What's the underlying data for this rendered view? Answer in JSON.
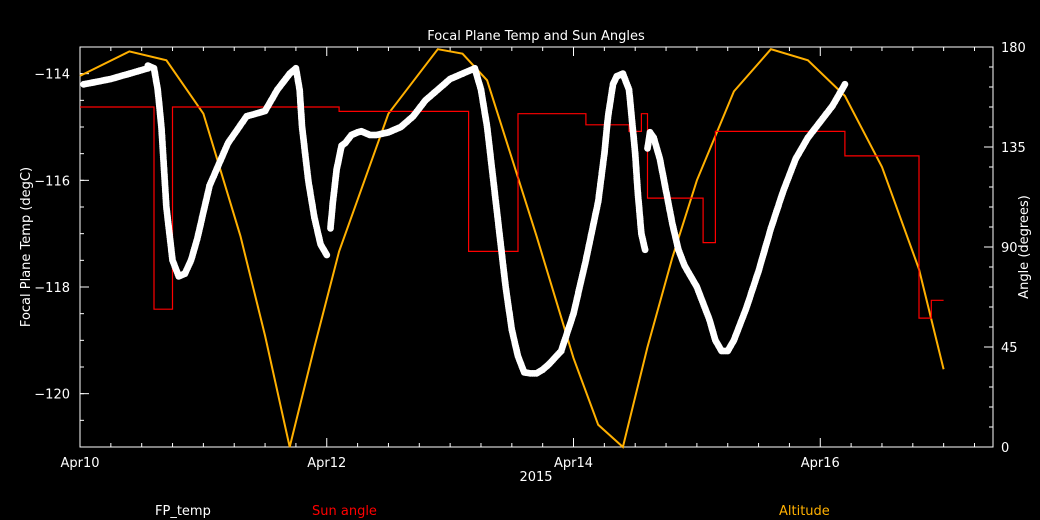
{
  "chart_data": {
    "type": "line",
    "title": "Focal Plane Temp and Sun Angles",
    "xlabel": "2015",
    "ylabel": "Focal Plane Temp (degC)",
    "y2label": "Angle (degrees)",
    "x_ticks": [
      "Apr10",
      "Apr12",
      "Apr14",
      "Apr16"
    ],
    "x_tick_days": [
      0,
      2,
      4,
      6
    ],
    "xlim_days": [
      0,
      7.4
    ],
    "ylim": [
      -121,
      -113.5
    ],
    "y_ticks": [
      -114,
      -116,
      -118,
      -120
    ],
    "y_tick_labels": [
      "−114",
      "−116",
      "−118",
      "−120"
    ],
    "y2lim": [
      0,
      180
    ],
    "y2_ticks": [
      0,
      45,
      90,
      135,
      180
    ],
    "grid": false,
    "legend_position": "bottom",
    "colors": {
      "fp_temp": "#ffffff",
      "sun_angle": "#ff0000",
      "altitude": "#ffb000",
      "axes": "#ffffff"
    },
    "series": [
      {
        "name": "FP_temp",
        "axis": "left",
        "marker": "star",
        "segments": [
          {
            "x": [
              0.03,
              0.25,
              0.4,
              0.55
            ],
            "y": [
              -114.2,
              -114.1,
              -114.0,
              -113.9
            ]
          },
          {
            "x": [
              0.55,
              0.6,
              0.63,
              0.66,
              0.7,
              0.75,
              0.8,
              0.85,
              0.9,
              0.95,
              1.05,
              1.2,
              1.35,
              1.5,
              1.6,
              1.7,
              1.75,
              1.78,
              1.8,
              1.85,
              1.9,
              1.95,
              2.0
            ],
            "y": [
              -113.85,
              -113.9,
              -114.3,
              -115.0,
              -116.5,
              -117.5,
              -117.8,
              -117.75,
              -117.5,
              -117.1,
              -116.1,
              -115.3,
              -114.8,
              -114.7,
              -114.3,
              -114.0,
              -113.9,
              -114.3,
              -115.0,
              -116.0,
              -116.7,
              -117.2,
              -117.4
            ]
          },
          {
            "x": [
              2.03,
              2.05,
              2.08,
              2.12,
              2.15,
              2.2,
              2.25,
              2.28,
              2.3,
              2.35,
              2.4,
              2.5,
              2.6,
              2.7,
              2.8,
              3.0,
              3.1,
              3.2,
              3.25,
              3.3,
              3.35,
              3.4,
              3.45,
              3.5,
              3.55,
              3.6,
              3.65,
              3.7,
              3.75,
              3.8,
              3.9
            ],
            "y": [
              -116.9,
              -116.4,
              -115.8,
              -115.35,
              -115.3,
              -115.15,
              -115.1,
              -115.08,
              -115.1,
              -115.15,
              -115.15,
              -115.1,
              -115.0,
              -114.8,
              -114.5,
              -114.1,
              -114.0,
              -113.9,
              -114.3,
              -115.0,
              -116.0,
              -117.0,
              -118.0,
              -118.8,
              -119.3,
              -119.6,
              -119.62,
              -119.62,
              -119.55,
              -119.45,
              -119.2
            ]
          },
          {
            "x": [
              3.9,
              4.0,
              4.1,
              4.2,
              4.25,
              4.28,
              4.32,
              4.35,
              4.4,
              4.45,
              4.5,
              4.52,
              4.55,
              4.58
            ],
            "y": [
              -119.2,
              -118.5,
              -117.5,
              -116.4,
              -115.5,
              -114.8,
              -114.2,
              -114.05,
              -114.0,
              -114.3,
              -115.5,
              -116.2,
              -117.0,
              -117.3
            ]
          },
          {
            "x": [
              4.6,
              4.62,
              4.65,
              4.7,
              4.75,
              4.8,
              4.85,
              4.9,
              5.0,
              5.1,
              5.15,
              5.2,
              5.25,
              5.3,
              5.4,
              5.5,
              5.6,
              5.7,
              5.8,
              5.9,
              6.0,
              6.1,
              6.15,
              6.2
            ],
            "y": [
              -115.4,
              -115.1,
              -115.2,
              -115.6,
              -116.2,
              -116.8,
              -117.3,
              -117.6,
              -118.0,
              -118.6,
              -119.0,
              -119.2,
              -119.2,
              -119.0,
              -118.4,
              -117.7,
              -116.9,
              -116.2,
              -115.6,
              -115.2,
              -114.9,
              -114.6,
              -114.4,
              -114.2
            ]
          }
        ]
      },
      {
        "name": "Sun angle",
        "axis": "right",
        "line_style": "step",
        "x": [
          0.0,
          0.6,
          0.6,
          0.75,
          0.75,
          2.1,
          2.1,
          3.15,
          3.15,
          3.55,
          3.55,
          4.1,
          4.1,
          4.45,
          4.45,
          4.55,
          4.55,
          4.6,
          4.6,
          5.05,
          5.05,
          5.15,
          5.15,
          6.2,
          6.2,
          6.8,
          6.8,
          6.9,
          6.9,
          7.0
        ],
        "y": [
          153,
          153,
          62,
          62,
          153,
          153,
          151,
          151,
          88,
          88,
          150,
          150,
          145,
          145,
          142,
          142,
          150,
          150,
          112,
          112,
          92,
          92,
          142,
          142,
          131,
          131,
          58,
          58,
          66,
          66
        ]
      },
      {
        "name": "Altitude",
        "axis": "right",
        "line_style": "line",
        "x": [
          0.0,
          0.4,
          0.7,
          1.0,
          1.3,
          1.5,
          1.7,
          1.9,
          2.1,
          2.5,
          2.9,
          3.1,
          3.3,
          3.7,
          4.0,
          4.2,
          4.4,
          4.6,
          4.8,
          5.0,
          5.3,
          5.6,
          5.9,
          6.2,
          6.5,
          6.8,
          7.0
        ],
        "y": [
          167,
          178,
          174,
          150,
          95,
          50,
          0,
          45,
          88,
          150,
          179,
          177,
          165,
          95,
          40,
          10,
          0,
          45,
          85,
          120,
          160,
          179,
          174,
          158,
          126,
          80,
          35
        ]
      }
    ]
  }
}
